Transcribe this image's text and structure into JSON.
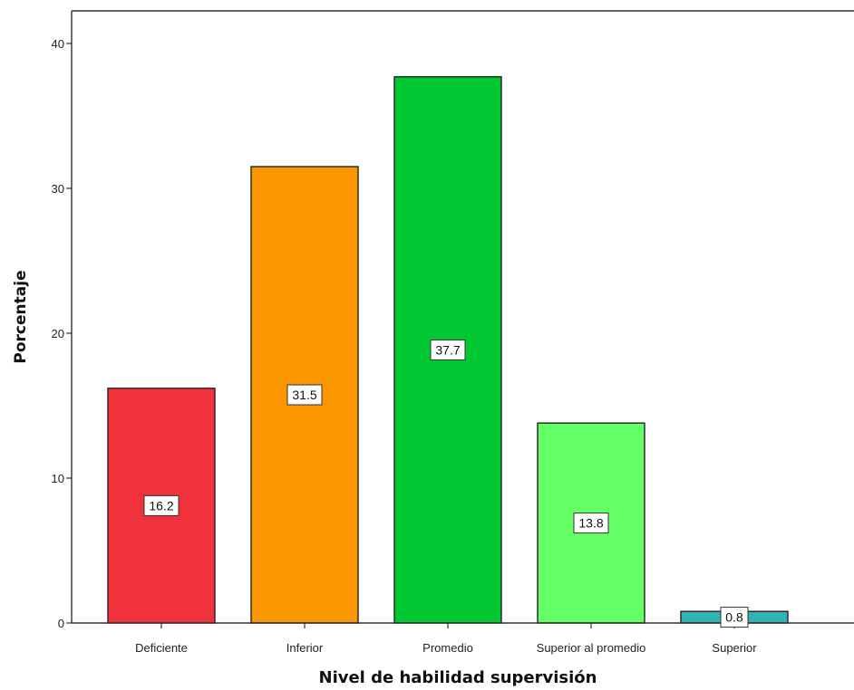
{
  "chart_data": {
    "type": "bar",
    "title": "",
    "xlabel": "Nivel de habilidad supervisión",
    "ylabel": "Porcentaje",
    "ylim": [
      0,
      42
    ],
    "yticks": [
      0,
      10,
      20,
      30,
      40
    ],
    "grid": false,
    "categories": [
      "Deficiente",
      "Inferior",
      "Promedio",
      "Superior al promedio",
      "Superior"
    ],
    "values": [
      16.2,
      31.5,
      37.7,
      13.8,
      0.8
    ],
    "data_labels": [
      "16.2",
      "31.5",
      "37.7",
      "13.8",
      "0.8"
    ],
    "colors": [
      "#f0323c",
      "#fa9600",
      "#00c832",
      "#64ff64",
      "#32b4b4"
    ]
  }
}
